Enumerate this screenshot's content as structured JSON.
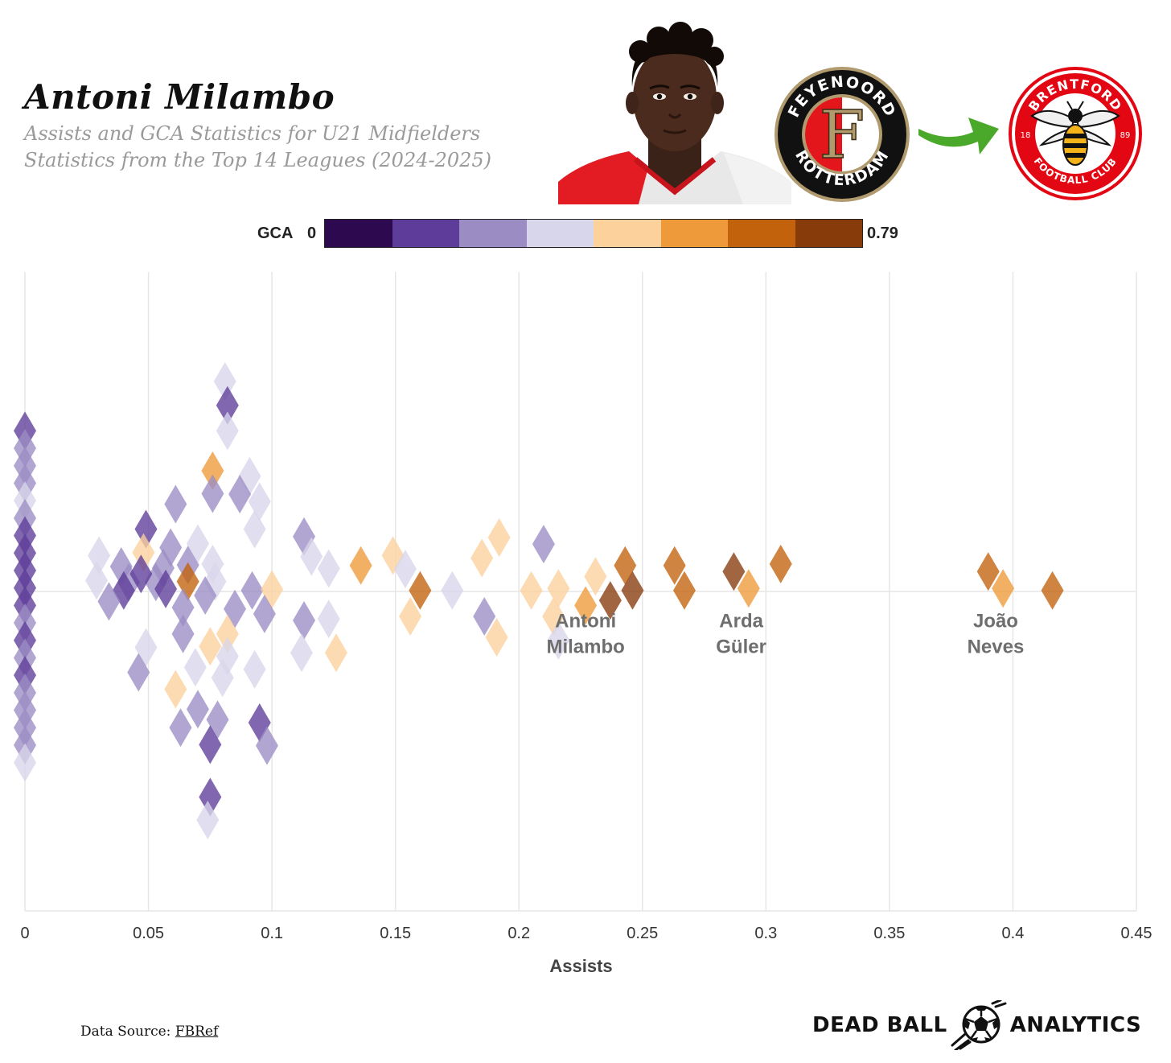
{
  "header": {
    "title": "Antoni Milambo",
    "subtitle_line1": "Assists and GCA Statistics for U21 Midfielders",
    "subtitle_line2": "Statistics from the Top 14 Leagues (2024-2025)"
  },
  "logos": {
    "from_club_top": "FEYENOORD",
    "from_club_bottom": "ROTTERDAM",
    "from_club_letter": "F",
    "to_club_top": "BRENTFORD",
    "to_club_bottom": "FOOTBALL CLUB",
    "to_club_year_left": "18",
    "to_club_year_right": "89"
  },
  "colors": {
    "scale": [
      "#2d0a4f",
      "#5e3c99",
      "#9b8dc4",
      "#d8d6ea",
      "#fdd19c",
      "#ee9a3a",
      "#c3620c",
      "#873b0b"
    ],
    "grid": "#e6e6e6",
    "arrow": "#4aa82a",
    "feyenoord_red": "#e3161b",
    "feyenoord_gold": "#b09a6e",
    "brentford_red": "#e30613"
  },
  "legend": {
    "name": "GCA",
    "min_label": "0",
    "max_label": "0.79"
  },
  "chart_data": {
    "type": "scatter",
    "subtype": "beeswarm",
    "title": "Antoni Milambo",
    "xlabel": "Assists",
    "ylabel": "",
    "xlim": [
      0,
      0.45
    ],
    "ylim": [
      -7,
      7
    ],
    "xticks": [
      "0",
      "0.05",
      "0.1",
      "0.15",
      "0.2",
      "0.25",
      "0.3",
      "0.35",
      "0.4",
      "0.45"
    ],
    "color_metric": "GCA",
    "color_range": [
      0,
      0.79
    ],
    "highlight_labels": [
      {
        "name_line1": "Antoni",
        "name_line2": "Milambo",
        "assists": 0.227
      },
      {
        "name_line1": "Arda",
        "name_line2": "Güler",
        "assists": 0.29
      },
      {
        "name_line1": "João",
        "name_line2": "Neves",
        "assists": 0.393
      }
    ],
    "points": [
      {
        "x": 0,
        "y": 3.22,
        "c": 1
      },
      {
        "x": 0,
        "y": 2.87,
        "c": 2
      },
      {
        "x": 0,
        "y": 2.52,
        "c": 2
      },
      {
        "x": 0,
        "y": 2.17,
        "c": 2
      },
      {
        "x": 0,
        "y": 1.82,
        "c": 3
      },
      {
        "x": 0,
        "y": 1.47,
        "c": 2
      },
      {
        "x": 0,
        "y": 1.12,
        "c": 1
      },
      {
        "x": 0,
        "y": 0.77,
        "c": 1
      },
      {
        "x": 0,
        "y": 0.42,
        "c": 1
      },
      {
        "x": 0,
        "y": 0.07,
        "c": 1
      },
      {
        "x": 0,
        "y": -0.28,
        "c": 1
      },
      {
        "x": 0,
        "y": -0.63,
        "c": 2
      },
      {
        "x": 0,
        "y": -0.98,
        "c": 1
      },
      {
        "x": 0,
        "y": -1.33,
        "c": 2
      },
      {
        "x": 0,
        "y": -1.68,
        "c": 1
      },
      {
        "x": 0,
        "y": -2.03,
        "c": 2
      },
      {
        "x": 0,
        "y": -2.38,
        "c": 2
      },
      {
        "x": 0,
        "y": -2.73,
        "c": 2
      },
      {
        "x": 0,
        "y": -3.08,
        "c": 2
      },
      {
        "x": 0,
        "y": -3.43,
        "c": 3
      },
      {
        "x": 0.081,
        "y": 4.21,
        "c": 3
      },
      {
        "x": 0.082,
        "y": 3.73,
        "c": 1
      },
      {
        "x": 0.082,
        "y": 3.22,
        "c": 3
      },
      {
        "x": 0.076,
        "y": 2.42,
        "c": 5
      },
      {
        "x": 0.091,
        "y": 2.31,
        "c": 3
      },
      {
        "x": 0.076,
        "y": 1.96,
        "c": 2
      },
      {
        "x": 0.087,
        "y": 1.95,
        "c": 2
      },
      {
        "x": 0.061,
        "y": 1.75,
        "c": 2
      },
      {
        "x": 0.095,
        "y": 1.8,
        "c": 3
      },
      {
        "x": 0.093,
        "y": 1.25,
        "c": 3
      },
      {
        "x": 0.049,
        "y": 1.25,
        "c": 1
      },
      {
        "x": 0.113,
        "y": 1.1,
        "c": 2
      },
      {
        "x": 0.059,
        "y": 0.88,
        "c": 2
      },
      {
        "x": 0.07,
        "y": 0.96,
        "c": 3
      },
      {
        "x": 0.048,
        "y": 0.78,
        "c": 4
      },
      {
        "x": 0.116,
        "y": 0.7,
        "c": 3
      },
      {
        "x": 0.03,
        "y": 0.72,
        "c": 3
      },
      {
        "x": 0.066,
        "y": 0.53,
        "c": 2
      },
      {
        "x": 0.136,
        "y": 0.52,
        "c": 5
      },
      {
        "x": 0.149,
        "y": 0.72,
        "c": 4
      },
      {
        "x": 0.123,
        "y": 0.46,
        "c": 3
      },
      {
        "x": 0.039,
        "y": 0.5,
        "c": 2
      },
      {
        "x": 0.076,
        "y": 0.55,
        "c": 3
      },
      {
        "x": 0.056,
        "y": 0.47,
        "c": 2
      },
      {
        "x": 0.154,
        "y": 0.45,
        "c": 3
      },
      {
        "x": 0.077,
        "y": 0.2,
        "c": 3
      },
      {
        "x": 0.053,
        "y": 0.19,
        "c": 2
      },
      {
        "x": 0.042,
        "y": 0.18,
        "c": 2
      },
      {
        "x": 0.047,
        "y": 0.35,
        "c": 1
      },
      {
        "x": 0.029,
        "y": 0.22,
        "c": 3
      },
      {
        "x": 0.066,
        "y": 0.2,
        "c": 6
      },
      {
        "x": 0.092,
        "y": 0.02,
        "c": 2
      },
      {
        "x": 0.1,
        "y": 0.04,
        "c": 4
      },
      {
        "x": 0.057,
        "y": 0.05,
        "c": 1
      },
      {
        "x": 0.04,
        "y": 0.02,
        "c": 1
      },
      {
        "x": 0.034,
        "y": -0.2,
        "c": 2
      },
      {
        "x": 0.073,
        "y": -0.08,
        "c": 2
      },
      {
        "x": 0.064,
        "y": -0.32,
        "c": 2
      },
      {
        "x": 0.085,
        "y": -0.35,
        "c": 2
      },
      {
        "x": 0.097,
        "y": -0.45,
        "c": 2
      },
      {
        "x": 0.113,
        "y": -0.58,
        "c": 2
      },
      {
        "x": 0.123,
        "y": -0.55,
        "c": 3
      },
      {
        "x": 0.082,
        "y": -0.85,
        "c": 4
      },
      {
        "x": 0.064,
        "y": -0.85,
        "c": 2
      },
      {
        "x": 0.075,
        "y": -1.1,
        "c": 4
      },
      {
        "x": 0.049,
        "y": -1.12,
        "c": 3
      },
      {
        "x": 0.082,
        "y": -1.3,
        "c": 3
      },
      {
        "x": 0.112,
        "y": -1.23,
        "c": 3
      },
      {
        "x": 0.126,
        "y": -1.23,
        "c": 4
      },
      {
        "x": 0.069,
        "y": -1.52,
        "c": 3
      },
      {
        "x": 0.093,
        "y": -1.56,
        "c": 3
      },
      {
        "x": 0.046,
        "y": -1.62,
        "c": 2
      },
      {
        "x": 0.08,
        "y": -1.73,
        "c": 3
      },
      {
        "x": 0.061,
        "y": -1.96,
        "c": 4
      },
      {
        "x": 0.07,
        "y": -2.36,
        "c": 2
      },
      {
        "x": 0.078,
        "y": -2.57,
        "c": 2
      },
      {
        "x": 0.063,
        "y": -2.73,
        "c": 2
      },
      {
        "x": 0.095,
        "y": -2.63,
        "c": 1
      },
      {
        "x": 0.075,
        "y": -3.07,
        "c": 1
      },
      {
        "x": 0.098,
        "y": -3.09,
        "c": 2
      },
      {
        "x": 0.075,
        "y": -4.12,
        "c": 1
      },
      {
        "x": 0.074,
        "y": -4.58,
        "c": 3
      },
      {
        "x": 0.156,
        "y": -0.5,
        "c": 4
      },
      {
        "x": 0.16,
        "y": 0.02,
        "c": 6
      },
      {
        "x": 0.173,
        "y": 0.02,
        "c": 3
      },
      {
        "x": 0.185,
        "y": 0.67,
        "c": 4
      },
      {
        "x": 0.192,
        "y": 1.08,
        "c": 4
      },
      {
        "x": 0.186,
        "y": -0.5,
        "c": 2
      },
      {
        "x": 0.191,
        "y": -0.92,
        "c": 4
      },
      {
        "x": 0.21,
        "y": 0.95,
        "c": 2
      },
      {
        "x": 0.205,
        "y": 0.02,
        "c": 4
      },
      {
        "x": 0.216,
        "y": 0.06,
        "c": 4
      },
      {
        "x": 0.214,
        "y": -0.5,
        "c": 4
      },
      {
        "x": 0.216,
        "y": -0.98,
        "c": 3
      },
      {
        "x": 0.231,
        "y": 0.3,
        "c": 4
      },
      {
        "x": 0.227,
        "y": -0.28,
        "c": 5
      },
      {
        "x": 0.237,
        "y": -0.18,
        "c": 7
      },
      {
        "x": 0.243,
        "y": 0.52,
        "c": 6
      },
      {
        "x": 0.246,
        "y": 0.02,
        "c": 7
      },
      {
        "x": 0.263,
        "y": 0.52,
        "c": 6
      },
      {
        "x": 0.267,
        "y": 0.02,
        "c": 6
      },
      {
        "x": 0.287,
        "y": 0.4,
        "c": 7
      },
      {
        "x": 0.293,
        "y": 0.06,
        "c": 5
      },
      {
        "x": 0.306,
        "y": 0.55,
        "c": 6
      },
      {
        "x": 0.39,
        "y": 0.4,
        "c": 6
      },
      {
        "x": 0.396,
        "y": 0.06,
        "c": 5
      },
      {
        "x": 0.416,
        "y": 0.02,
        "c": 6
      }
    ]
  },
  "footer": {
    "source_prefix": "Data Source: ",
    "source_name": "FBRef",
    "brand_left": "DEAD BALL",
    "brand_right": "ANALYTICS"
  }
}
